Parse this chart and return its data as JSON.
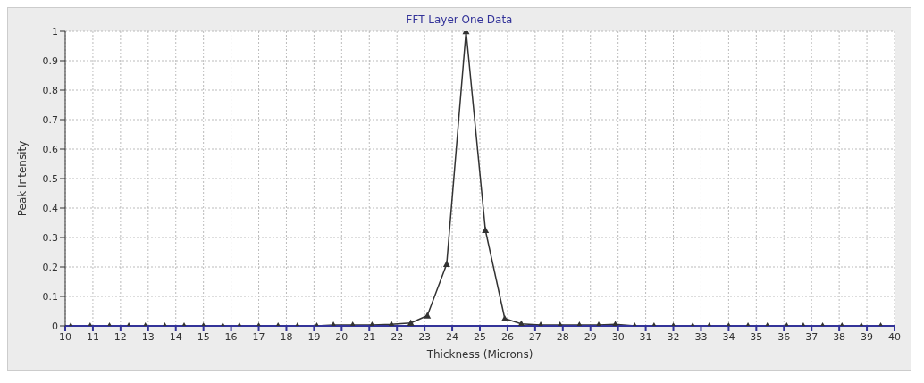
{
  "chart_data": {
    "type": "line",
    "title": "FFT Layer One Data",
    "xlabel": "Thickness (Microns)",
    "ylabel": "Peak Intensity",
    "x": [
      10.2,
      10.9,
      11.6,
      12.3,
      12.9,
      13.6,
      14.3,
      15.0,
      15.7,
      16.3,
      17.0,
      17.7,
      18.4,
      19.1,
      19.7,
      20.4,
      21.1,
      21.8,
      22.5,
      23.1,
      23.8,
      24.5,
      25.2,
      25.9,
      26.5,
      27.2,
      27.9,
      28.6,
      29.3,
      29.9,
      30.6,
      31.3,
      32.0,
      32.7,
      33.3,
      34.0,
      34.7,
      35.4,
      36.1,
      36.7,
      37.4,
      38.1,
      38.8,
      39.5
    ],
    "series": [
      {
        "color": "#333333",
        "values": [
          0,
          0,
          0,
          0,
          0,
          0,
          0,
          0,
          0,
          0,
          0,
          0,
          0,
          0,
          0.003,
          0.003,
          0.003,
          0.005,
          0.01,
          0.035,
          0.21,
          1,
          0.325,
          0.025,
          0.007,
          0.003,
          0.003,
          0.003,
          0.003,
          0.005,
          0,
          0,
          0,
          0,
          0,
          0,
          0,
          0,
          0,
          0,
          0,
          0,
          0,
          0
        ]
      }
    ],
    "xlim": [
      10,
      40
    ],
    "xticks": [
      10,
      11,
      12,
      13,
      14,
      15,
      16,
      17,
      18,
      19,
      20,
      21,
      22,
      23,
      24,
      25,
      26,
      27,
      28,
      29,
      30,
      31,
      32,
      33,
      34,
      35,
      36,
      37,
      38,
      39,
      40
    ],
    "ylim": [
      0,
      1
    ],
    "yticks": [
      0,
      0.1,
      0.2,
      0.3,
      0.4,
      0.5,
      0.6,
      0.7,
      0.8,
      0.9,
      1
    ],
    "grid": true,
    "legend": false,
    "marker": "triangle",
    "line_style": "solid"
  }
}
